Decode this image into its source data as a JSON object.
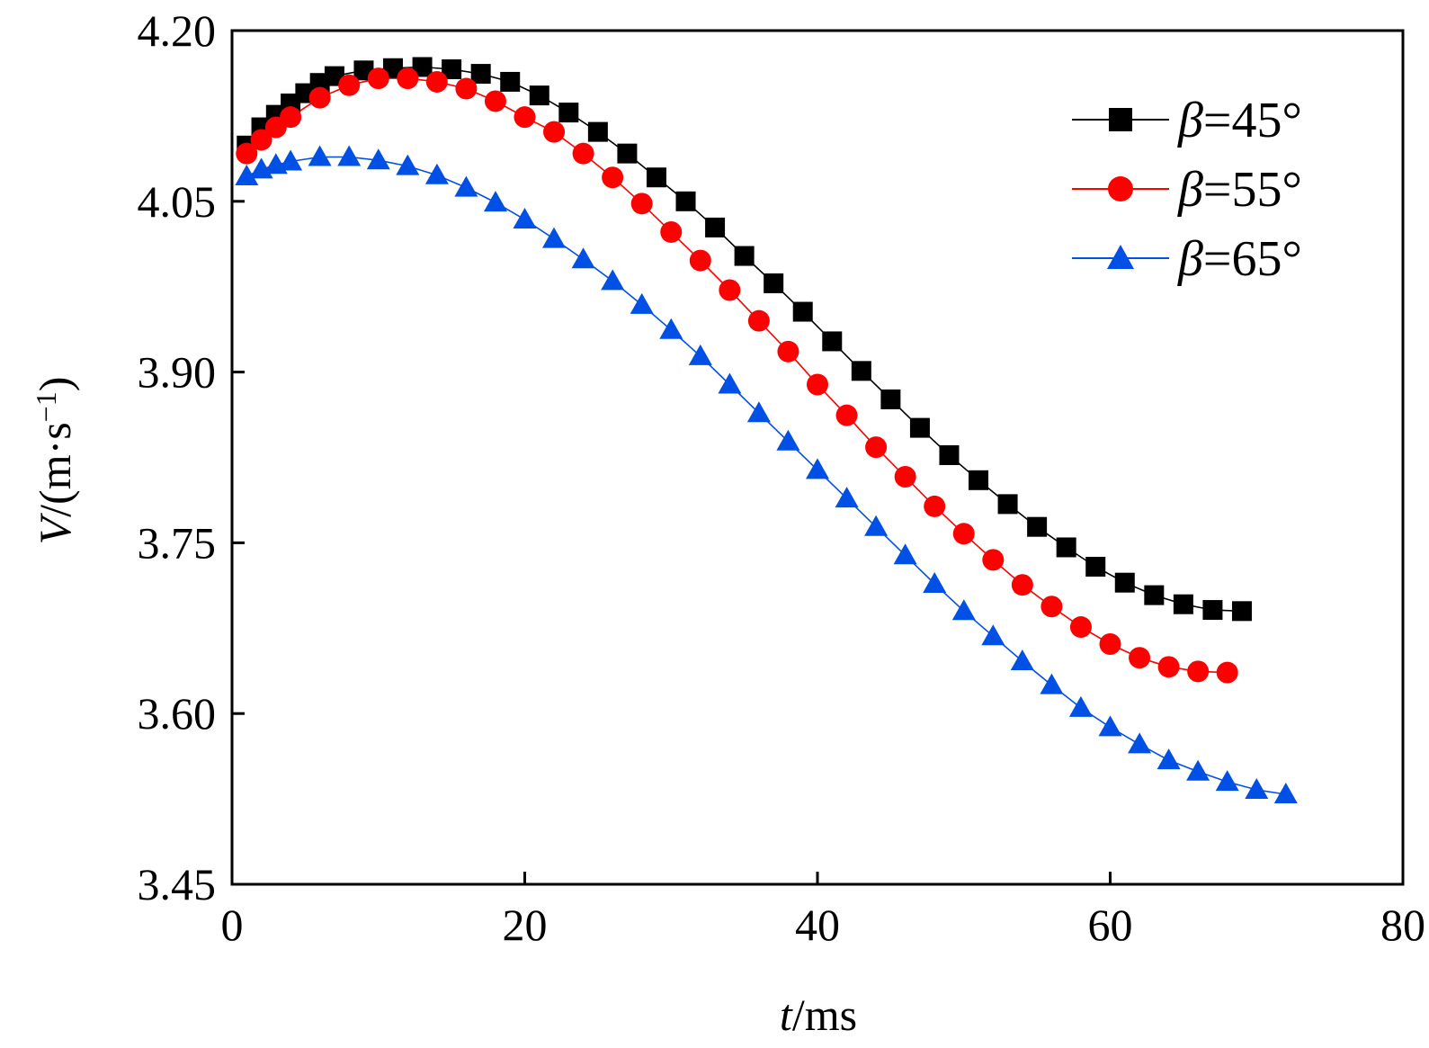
{
  "chart_data": {
    "type": "line",
    "title": "",
    "xlabel": {
      "italic": "t",
      "rest": "/ms"
    },
    "ylabel": {
      "italic": "V",
      "rest": "/(m·s",
      "sup": "−1",
      "close": ")"
    },
    "xlim": [
      0,
      80
    ],
    "ylim": [
      3.45,
      4.2
    ],
    "x_ticks": [
      "0",
      "20",
      "40",
      "60",
      "80"
    ],
    "y_ticks": [
      "3.45",
      "3.60",
      "3.75",
      "3.90",
      "4.05",
      "4.20"
    ],
    "legend_position": "top-right",
    "series": [
      {
        "name": "β=45°",
        "symbol": "β",
        "label": "=45°",
        "color": "#000000",
        "marker": "square",
        "x": [
          1,
          2,
          3,
          4,
          5,
          6,
          7,
          9,
          11,
          13,
          15,
          17,
          19,
          21,
          23,
          25,
          27,
          29,
          31,
          33,
          35,
          37,
          39,
          41,
          43,
          45,
          47,
          49,
          51,
          53,
          55,
          57,
          59,
          61,
          63,
          65,
          67,
          69
        ],
        "y": [
          4.099,
          4.115,
          4.126,
          4.136,
          4.145,
          4.154,
          4.16,
          4.165,
          4.167,
          4.168,
          4.166,
          4.162,
          4.155,
          4.143,
          4.128,
          4.111,
          4.092,
          4.071,
          4.05,
          4.027,
          4.002,
          3.978,
          3.953,
          3.927,
          3.901,
          3.876,
          3.851,
          3.827,
          3.805,
          3.784,
          3.764,
          3.746,
          3.729,
          3.715,
          3.704,
          3.696,
          3.691,
          3.69
        ]
      },
      {
        "name": "β=55°",
        "symbol": "β",
        "label": "=55°",
        "color": "#ff0000",
        "marker": "circle",
        "x": [
          1,
          2,
          3,
          4,
          6,
          8,
          10,
          12,
          14,
          16,
          18,
          20,
          22,
          24,
          26,
          28,
          30,
          32,
          34,
          36,
          38,
          40,
          42,
          44,
          46,
          48,
          50,
          52,
          54,
          56,
          58,
          60,
          62,
          64,
          66,
          68
        ],
        "y": [
          4.092,
          4.104,
          4.115,
          4.124,
          4.141,
          4.152,
          4.158,
          4.158,
          4.155,
          4.149,
          4.138,
          4.124,
          4.111,
          4.092,
          4.071,
          4.048,
          4.023,
          3.998,
          3.972,
          3.945,
          3.918,
          3.889,
          3.862,
          3.834,
          3.808,
          3.782,
          3.758,
          3.735,
          3.713,
          3.694,
          3.676,
          3.661,
          3.649,
          3.641,
          3.637,
          3.636
        ]
      },
      {
        "name": "β=65°",
        "symbol": "β",
        "label": "=65°",
        "color": "#0050e6",
        "marker": "triangle",
        "x": [
          1,
          2,
          3,
          4,
          6,
          8,
          10,
          12,
          14,
          16,
          18,
          20,
          22,
          24,
          26,
          28,
          30,
          32,
          34,
          36,
          38,
          40,
          42,
          44,
          46,
          48,
          50,
          52,
          54,
          56,
          58,
          60,
          62,
          64,
          66,
          68,
          70,
          72
        ],
        "y": [
          4.072,
          4.078,
          4.082,
          4.085,
          4.089,
          4.089,
          4.086,
          4.081,
          4.073,
          4.062,
          4.049,
          4.034,
          4.017,
          3.999,
          3.98,
          3.959,
          3.937,
          3.914,
          3.889,
          3.864,
          3.839,
          3.814,
          3.789,
          3.764,
          3.739,
          3.714,
          3.69,
          3.668,
          3.646,
          3.625,
          3.605,
          3.588,
          3.573,
          3.559,
          3.549,
          3.54,
          3.533,
          3.529
        ]
      }
    ]
  }
}
